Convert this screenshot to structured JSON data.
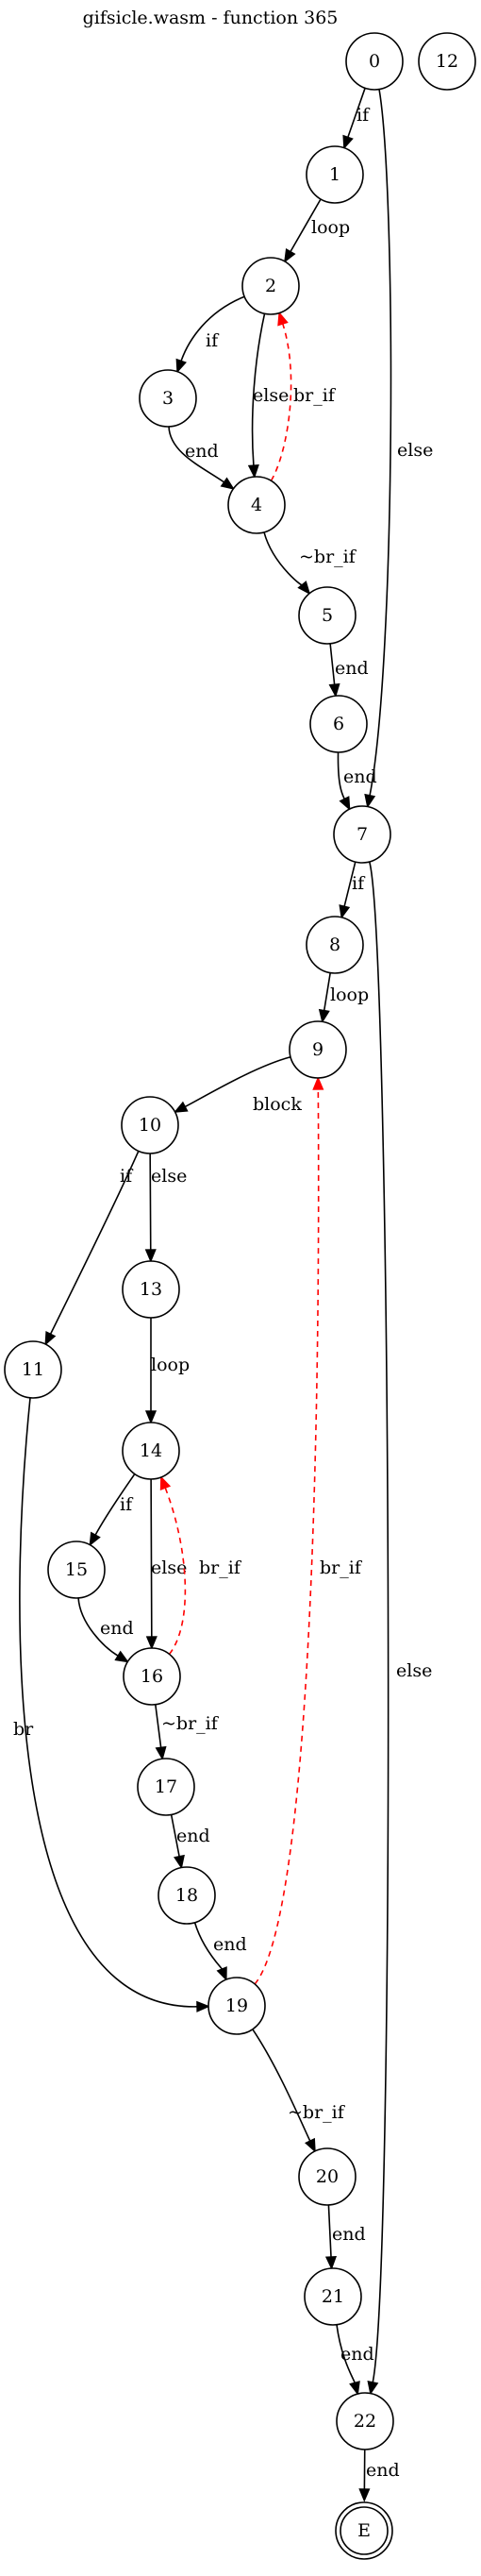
{
  "title": "gifsicle.wasm - function 365",
  "colors": {
    "normal": "#000000",
    "back_edge": "#ff0000",
    "background": "#ffffff"
  },
  "nodes": [
    {
      "id": "0",
      "label": "0"
    },
    {
      "id": "12",
      "label": "12"
    },
    {
      "id": "1",
      "label": "1"
    },
    {
      "id": "2",
      "label": "2"
    },
    {
      "id": "3",
      "label": "3"
    },
    {
      "id": "4",
      "label": "4"
    },
    {
      "id": "5",
      "label": "5"
    },
    {
      "id": "6",
      "label": "6"
    },
    {
      "id": "7",
      "label": "7"
    },
    {
      "id": "8",
      "label": "8"
    },
    {
      "id": "9",
      "label": "9"
    },
    {
      "id": "10",
      "label": "10"
    },
    {
      "id": "11",
      "label": "11"
    },
    {
      "id": "13",
      "label": "13"
    },
    {
      "id": "14",
      "label": "14"
    },
    {
      "id": "15",
      "label": "15"
    },
    {
      "id": "16",
      "label": "16"
    },
    {
      "id": "17",
      "label": "17"
    },
    {
      "id": "18",
      "label": "18"
    },
    {
      "id": "19",
      "label": "19"
    },
    {
      "id": "20",
      "label": "20"
    },
    {
      "id": "21",
      "label": "21"
    },
    {
      "id": "22",
      "label": "22"
    },
    {
      "id": "E",
      "label": "E",
      "terminal": true
    }
  ],
  "edges": [
    {
      "id": "e0-1",
      "from": "0",
      "to": "1",
      "label": "if",
      "style": "solid"
    },
    {
      "id": "e0-7",
      "from": "0",
      "to": "7",
      "label": "else",
      "style": "solid"
    },
    {
      "id": "e1-2",
      "from": "1",
      "to": "2",
      "label": "loop",
      "style": "solid"
    },
    {
      "id": "e2-3",
      "from": "2",
      "to": "3",
      "label": "if",
      "style": "solid"
    },
    {
      "id": "e2-4",
      "from": "2",
      "to": "4",
      "label": "else",
      "style": "solid"
    },
    {
      "id": "e3-4",
      "from": "3",
      "to": "4",
      "label": "end",
      "style": "solid"
    },
    {
      "id": "e4-2",
      "from": "4",
      "to": "2",
      "label": "br_if",
      "style": "dashed"
    },
    {
      "id": "e4-5",
      "from": "4",
      "to": "5",
      "label": "~br_if",
      "style": "solid"
    },
    {
      "id": "e5-6",
      "from": "5",
      "to": "6",
      "label": "end",
      "style": "solid"
    },
    {
      "id": "e6-7",
      "from": "6",
      "to": "7",
      "label": "end",
      "style": "solid"
    },
    {
      "id": "e7-8",
      "from": "7",
      "to": "8",
      "label": "if",
      "style": "solid"
    },
    {
      "id": "e7-22",
      "from": "7",
      "to": "22",
      "label": "else",
      "style": "solid"
    },
    {
      "id": "e8-9",
      "from": "8",
      "to": "9",
      "label": "loop",
      "style": "solid"
    },
    {
      "id": "e9-10",
      "from": "9",
      "to": "10",
      "label": "block",
      "style": "solid"
    },
    {
      "id": "e10-11",
      "from": "10",
      "to": "11",
      "label": "if",
      "style": "solid"
    },
    {
      "id": "e10-13",
      "from": "10",
      "to": "13",
      "label": "else",
      "style": "solid"
    },
    {
      "id": "e11-19",
      "from": "11",
      "to": "19",
      "label": "br",
      "style": "solid"
    },
    {
      "id": "e13-14",
      "from": "13",
      "to": "14",
      "label": "loop",
      "style": "solid"
    },
    {
      "id": "e14-15",
      "from": "14",
      "to": "15",
      "label": "if",
      "style": "solid"
    },
    {
      "id": "e14-16",
      "from": "14",
      "to": "16",
      "label": "else",
      "style": "solid"
    },
    {
      "id": "e15-16",
      "from": "15",
      "to": "16",
      "label": "end",
      "style": "solid"
    },
    {
      "id": "e16-14",
      "from": "16",
      "to": "14",
      "label": "br_if",
      "style": "dashed"
    },
    {
      "id": "e16-17",
      "from": "16",
      "to": "17",
      "label": "~br_if",
      "style": "solid"
    },
    {
      "id": "e17-18",
      "from": "17",
      "to": "18",
      "label": "end",
      "style": "solid"
    },
    {
      "id": "e18-19",
      "from": "18",
      "to": "19",
      "label": "end",
      "style": "solid"
    },
    {
      "id": "e19-9",
      "from": "19",
      "to": "9",
      "label": "br_if",
      "style": "dashed"
    },
    {
      "id": "e19-20",
      "from": "19",
      "to": "20",
      "label": "~br_if",
      "style": "solid"
    },
    {
      "id": "e20-21",
      "from": "20",
      "to": "21",
      "label": "end",
      "style": "solid"
    },
    {
      "id": "e21-22",
      "from": "21",
      "to": "22",
      "label": "end",
      "style": "solid"
    },
    {
      "id": "e22-E",
      "from": "22",
      "to": "E",
      "label": "end",
      "style": "solid"
    }
  ]
}
